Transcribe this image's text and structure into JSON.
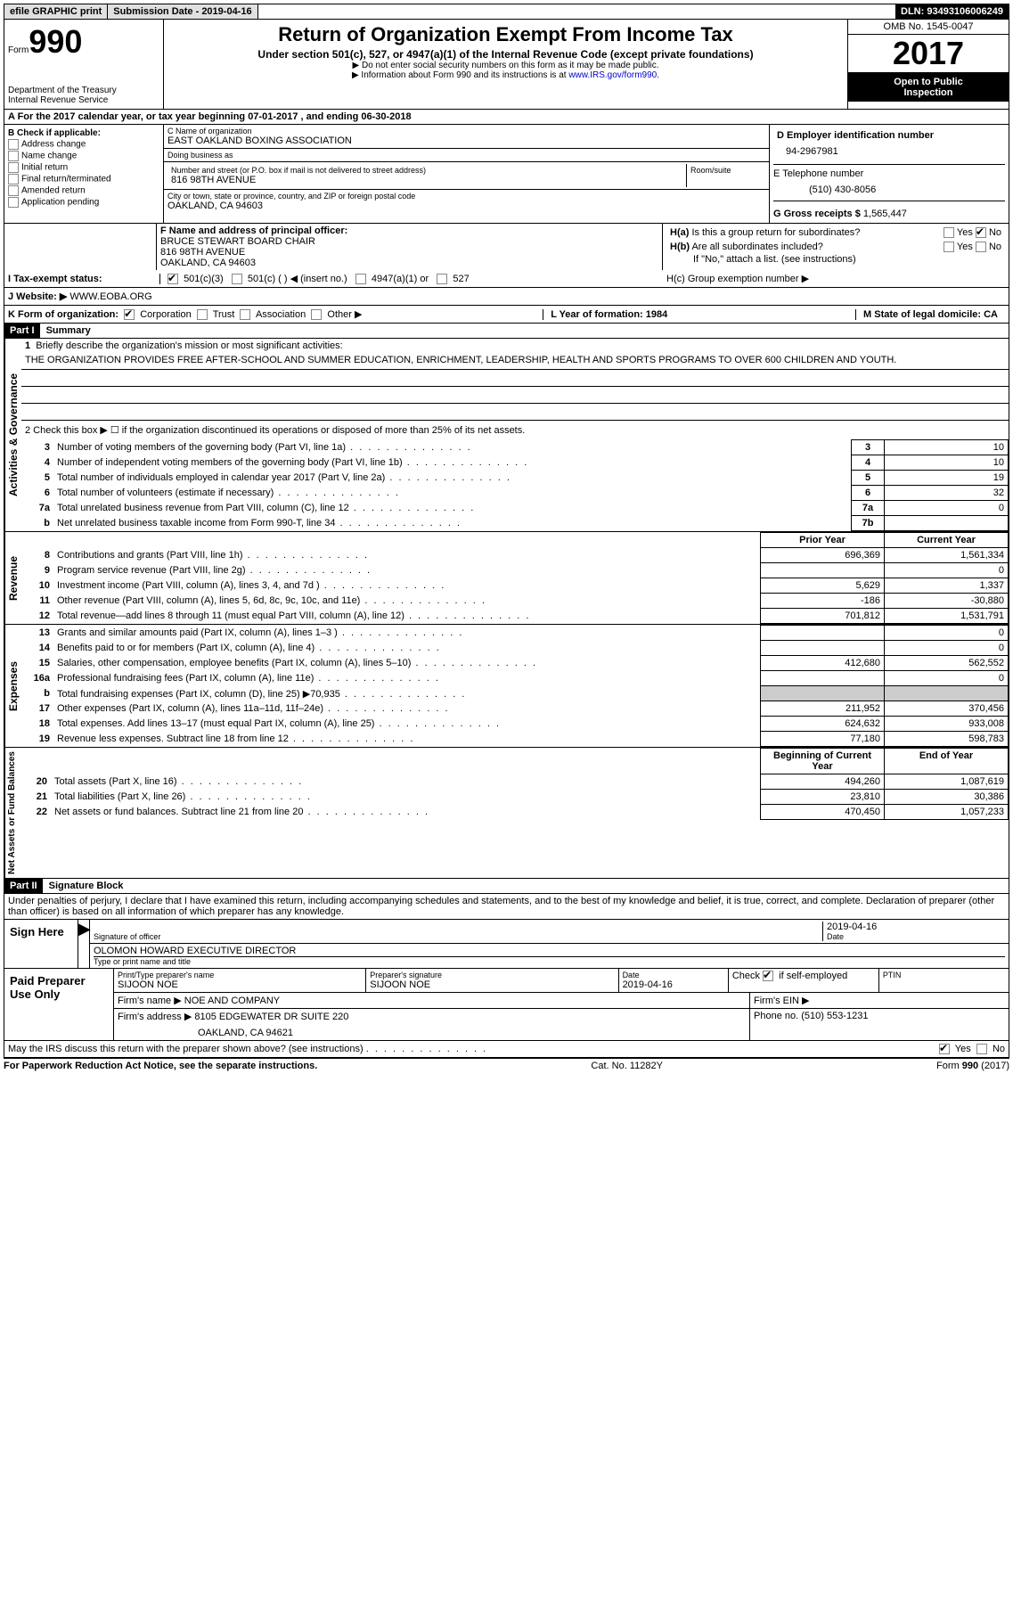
{
  "topbar": {
    "efile": "efile GRAPHIC print",
    "submission": "Submission Date - 2019-04-16",
    "dln": "DLN: 93493106006249"
  },
  "header": {
    "form_word": "Form",
    "form_num": "990",
    "dept1": "Department of the Treasury",
    "dept2": "Internal Revenue Service",
    "title": "Return of Organization Exempt From Income Tax",
    "subtitle": "Under section 501(c), 527, or 4947(a)(1) of the Internal Revenue Code (except private foundations)",
    "arrow1": "▶ Do not enter social security numbers on this form as it may be made public.",
    "arrow2_pre": "▶ Information about Form 990 and its instructions is at ",
    "arrow2_link": "www.IRS.gov/form990",
    "omb": "OMB No. 1545-0047",
    "year": "2017",
    "open1": "Open to Public",
    "open2": "Inspection"
  },
  "rowA": "A  For the 2017 calendar year, or tax year beginning 07-01-2017   , and ending 06-30-2018",
  "sectionB": {
    "label": "B Check if applicable:",
    "opts": [
      "Address change",
      "Name change",
      "Initial return",
      "Final return/terminated",
      "Amended return",
      "Application pending"
    ]
  },
  "sectionC": {
    "name_label": "C Name of organization",
    "name": "EAST OAKLAND BOXING ASSOCIATION",
    "dba_label": "Doing business as",
    "dba": "",
    "addr_label": "Number and street (or P.O. box if mail is not delivered to street address)",
    "room_label": "Room/suite",
    "addr": "816 98TH AVENUE",
    "city_label": "City or town, state or province, country, and ZIP or foreign postal code",
    "city": "OAKLAND, CA  94603"
  },
  "sectionD": {
    "label": "D Employer identification number",
    "val": "94-2967981",
    "phone_label": "E Telephone number",
    "phone": "(510) 430-8056",
    "gross_label": "G Gross receipts $",
    "gross": "1,565,447"
  },
  "sectionF": {
    "label": "F  Name and address of principal officer:",
    "name": "BRUCE STEWART BOARD CHAIR",
    "addr1": "816 98TH AVENUE",
    "addr2": "OAKLAND, CA  94603"
  },
  "sectionH": {
    "ha": "H(a)  Is this a group return for subordinates?",
    "hb": "H(b)  Are all subordinates included?",
    "hb_note": "If \"No,\" attach a list. (see instructions)",
    "hc": "H(c)  Group exemption number ▶",
    "yes": "Yes",
    "no": "No"
  },
  "rowI": {
    "label": "I  Tax-exempt status:",
    "o1": "501(c)(3)",
    "o2": "501(c) (   ) ◀ (insert no.)",
    "o3": "4947(a)(1) or",
    "o4": "527"
  },
  "rowJ": {
    "label": "J  Website: ▶",
    "val": "WWW.EOBA.ORG"
  },
  "rowK": {
    "label": "K Form of organization:",
    "o1": "Corporation",
    "o2": "Trust",
    "o3": "Association",
    "o4": "Other ▶",
    "l": "L Year of formation: 1984",
    "m": "M State of legal domicile: CA"
  },
  "part1": {
    "tag": "Part I",
    "title": "Summary",
    "side1": "Activities & Governance",
    "side2": "Revenue",
    "side3": "Expenses",
    "side4": "Net Assets or Fund Balances",
    "l1": "1  Briefly describe the organization's mission or most significant activities:",
    "mission": "THE ORGANIZATION PROVIDES FREE AFTER-SCHOOL AND SUMMER EDUCATION, ENRICHMENT, LEADERSHIP, HEALTH AND SPORTS PROGRAMS TO OVER 600 CHILDREN AND YOUTH.",
    "l2": "2   Check this box ▶ ☐  if the organization discontinued its operations or disposed of more than 25% of its net assets.",
    "lines_gov": [
      {
        "n": "3",
        "t": "Number of voting members of the governing body (Part VI, line 1a)",
        "b": "3",
        "v": "10"
      },
      {
        "n": "4",
        "t": "Number of independent voting members of the governing body (Part VI, line 1b)",
        "b": "4",
        "v": "10"
      },
      {
        "n": "5",
        "t": "Total number of individuals employed in calendar year 2017 (Part V, line 2a)",
        "b": "5",
        "v": "19"
      },
      {
        "n": "6",
        "t": "Total number of volunteers (estimate if necessary)",
        "b": "6",
        "v": "32"
      },
      {
        "n": "7a",
        "t": "Total unrelated business revenue from Part VIII, column (C), line 12",
        "b": "7a",
        "v": "0"
      },
      {
        "n": "b",
        "t": "Net unrelated business taxable income from Form 990-T, line 34",
        "b": "7b",
        "v": ""
      }
    ],
    "col_hdr_prior": "Prior Year",
    "col_hdr_curr": "Current Year",
    "lines_rev": [
      {
        "n": "8",
        "t": "Contributions and grants (Part VIII, line 1h)",
        "p": "696,369",
        "c": "1,561,334"
      },
      {
        "n": "9",
        "t": "Program service revenue (Part VIII, line 2g)",
        "p": "",
        "c": "0"
      },
      {
        "n": "10",
        "t": "Investment income (Part VIII, column (A), lines 3, 4, and 7d )",
        "p": "5,629",
        "c": "1,337"
      },
      {
        "n": "11",
        "t": "Other revenue (Part VIII, column (A), lines 5, 6d, 8c, 9c, 10c, and 11e)",
        "p": "-186",
        "c": "-30,880"
      },
      {
        "n": "12",
        "t": "Total revenue—add lines 8 through 11 (must equal Part VIII, column (A), line 12)",
        "p": "701,812",
        "c": "1,531,791"
      }
    ],
    "lines_exp": [
      {
        "n": "13",
        "t": "Grants and similar amounts paid (Part IX, column (A), lines 1–3 )",
        "p": "",
        "c": "0"
      },
      {
        "n": "14",
        "t": "Benefits paid to or for members (Part IX, column (A), line 4)",
        "p": "",
        "c": "0"
      },
      {
        "n": "15",
        "t": "Salaries, other compensation, employee benefits (Part IX, column (A), lines 5–10)",
        "p": "412,680",
        "c": "562,552"
      },
      {
        "n": "16a",
        "t": "Professional fundraising fees (Part IX, column (A), line 11e)",
        "p": "",
        "c": "0"
      },
      {
        "n": "b",
        "t": "Total fundraising expenses (Part IX, column (D), line 25) ▶70,935",
        "p": "SHADE",
        "c": "SHADE"
      },
      {
        "n": "17",
        "t": "Other expenses (Part IX, column (A), lines 11a–11d, 11f–24e)",
        "p": "211,952",
        "c": "370,456"
      },
      {
        "n": "18",
        "t": "Total expenses. Add lines 13–17 (must equal Part IX, column (A), line 25)",
        "p": "624,632",
        "c": "933,008"
      },
      {
        "n": "19",
        "t": "Revenue less expenses. Subtract line 18 from line 12",
        "p": "77,180",
        "c": "598,783"
      }
    ],
    "col_hdr_beg": "Beginning of Current Year",
    "col_hdr_end": "End of Year",
    "lines_net": [
      {
        "n": "20",
        "t": "Total assets (Part X, line 16)",
        "p": "494,260",
        "c": "1,087,619"
      },
      {
        "n": "21",
        "t": "Total liabilities (Part X, line 26)",
        "p": "23,810",
        "c": "30,386"
      },
      {
        "n": "22",
        "t": "Net assets or fund balances. Subtract line 21 from line 20",
        "p": "470,450",
        "c": "1,057,233"
      }
    ]
  },
  "part2": {
    "tag": "Part II",
    "title": "Signature Block",
    "decl": "Under penalties of perjury, I declare that I have examined this return, including accompanying schedules and statements, and to the best of my knowledge and belief, it is true, correct, and complete. Declaration of preparer (other than officer) is based on all information of which preparer has any knowledge.",
    "sign_here": "Sign Here",
    "sig_officer": "Signature of officer",
    "sig_date": "Date",
    "sig_date_val": "2019-04-16",
    "name_title_val": "OLOMON HOWARD  EXECUTIVE DIRECTOR",
    "name_title": "Type or print name and title",
    "paid": "Paid Preparer Use Only",
    "prep_name_label": "Print/Type preparer's name",
    "prep_name": "SIJOON NOE",
    "prep_sig_label": "Preparer's signature",
    "prep_sig": "SIJOON NOE",
    "prep_date_label": "Date",
    "prep_date": "2019-04-16",
    "check_label": "Check ☑ if self-employed",
    "ptin_label": "PTIN",
    "firm_name_label": "Firm's name    ▶",
    "firm_name": "NOE AND COMPANY",
    "firm_ein_label": "Firm's EIN ▶",
    "firm_addr_label": "Firm's address ▶",
    "firm_addr": "8105 EDGEWATER DR SUITE 220",
    "firm_addr2": "OAKLAND, CA  94621",
    "firm_phone_label": "Phone no.",
    "firm_phone": "(510) 553-1231",
    "discuss": "May the IRS discuss this return with the preparer shown above? (see instructions)",
    "yes": "Yes",
    "no": "No"
  },
  "footer": {
    "left": "For Paperwork Reduction Act Notice, see the separate instructions.",
    "mid": "Cat. No. 11282Y",
    "right": "Form 990 (2017)"
  }
}
